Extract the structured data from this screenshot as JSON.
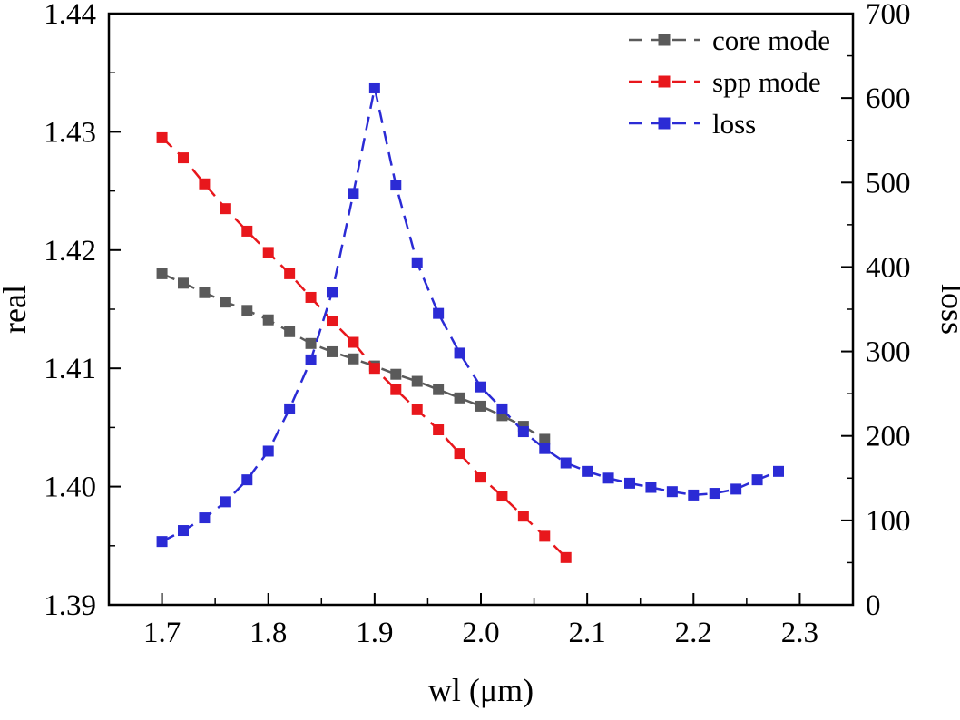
{
  "chart_data": {
    "type": "line",
    "title": "",
    "xlabel": "wl (μm)",
    "ylabel_left": "real",
    "ylabel_right": "loss",
    "xlim": [
      1.65,
      2.35
    ],
    "xticks": [
      1.7,
      1.8,
      1.9,
      2.0,
      2.1,
      2.2,
      2.3
    ],
    "ylim_left": [
      1.39,
      1.44
    ],
    "yticks_left": [
      1.39,
      1.4,
      1.41,
      1.42,
      1.43,
      1.44
    ],
    "ylim_right": [
      0,
      700
    ],
    "yticks_right": [
      0,
      100,
      200,
      300,
      400,
      500,
      600,
      700
    ],
    "grid": false,
    "legend_position": "top-right-inside",
    "line_style": "dashed",
    "marker": "square",
    "series": [
      {
        "name": "core mode",
        "axis": "left",
        "color": "#5a5a5a",
        "x": [
          1.7,
          1.72,
          1.74,
          1.76,
          1.78,
          1.8,
          1.82,
          1.84,
          1.86,
          1.88,
          1.9,
          1.92,
          1.94,
          1.96,
          1.98,
          2.0,
          2.02,
          2.04,
          2.06
        ],
        "y": [
          1.418,
          1.4172,
          1.4164,
          1.4156,
          1.4149,
          1.4141,
          1.4131,
          1.4121,
          1.4114,
          1.4108,
          1.4102,
          1.4095,
          1.4089,
          1.4082,
          1.4075,
          1.4068,
          1.406,
          1.4051,
          1.404
        ]
      },
      {
        "name": "spp mode",
        "axis": "left",
        "color": "#e8171c",
        "x": [
          1.7,
          1.72,
          1.74,
          1.76,
          1.78,
          1.8,
          1.82,
          1.84,
          1.86,
          1.88,
          1.9,
          1.92,
          1.94,
          1.96,
          1.98,
          2.0,
          2.02,
          2.04,
          2.06,
          2.08
        ],
        "y": [
          1.4295,
          1.4278,
          1.4256,
          1.4235,
          1.4216,
          1.4198,
          1.418,
          1.416,
          1.414,
          1.4122,
          1.41,
          1.4082,
          1.4065,
          1.4048,
          1.4028,
          1.4008,
          1.3992,
          1.3975,
          1.3958,
          1.394
        ]
      },
      {
        "name": "loss",
        "axis": "right",
        "color": "#2b2bd5",
        "x": [
          1.7,
          1.72,
          1.74,
          1.76,
          1.78,
          1.8,
          1.82,
          1.84,
          1.86,
          1.88,
          1.9,
          1.92,
          1.94,
          1.96,
          1.98,
          2.0,
          2.02,
          2.04,
          2.06,
          2.08,
          2.1,
          2.12,
          2.14,
          2.16,
          2.18,
          2.2,
          2.22,
          2.24,
          2.26,
          2.28
        ],
        "y": [
          75,
          88,
          103,
          122,
          148,
          182,
          232,
          290,
          370,
          487,
          612,
          497,
          405,
          345,
          298,
          258,
          232,
          205,
          185,
          168,
          158,
          150,
          144,
          139,
          134,
          130,
          132,
          137,
          148,
          158
        ]
      }
    ]
  }
}
